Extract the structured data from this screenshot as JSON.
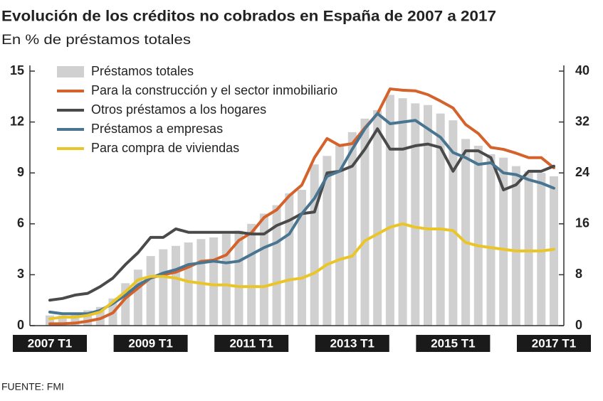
{
  "chart_data": {
    "type": "combo",
    "title": "Evolución de los créditos no cobrados en España de 2007 a 2017",
    "subtitle": "En % de préstamos totales",
    "source": "FUENTE: FMI",
    "categories": [
      "2007 T1",
      null,
      null,
      null,
      null,
      null,
      null,
      null,
      "2009 T1",
      null,
      null,
      null,
      null,
      null,
      null,
      null,
      "2011 T1",
      null,
      null,
      null,
      null,
      null,
      null,
      null,
      "2013 T1",
      null,
      null,
      null,
      null,
      null,
      null,
      null,
      "2015 T1",
      null,
      null,
      null,
      null,
      null,
      null,
      null,
      "2017 T1"
    ],
    "ylim": [
      0,
      15
    ],
    "yticks": [
      0,
      3,
      6,
      9,
      12,
      15
    ],
    "y2lim": [
      0,
      40
    ],
    "y2ticks": [
      0,
      8,
      16,
      24,
      32,
      40
    ],
    "legend": "top-left",
    "series": [
      {
        "name": "Préstamos totales",
        "type": "bar",
        "color": "#d0d0d0",
        "values": [
          0.6,
          0.6,
          0.7,
          0.9,
          1.1,
          1.6,
          2.5,
          3.3,
          4.1,
          4.5,
          4.7,
          4.9,
          5.1,
          5.2,
          5.4,
          5.6,
          6.0,
          6.6,
          7.1,
          7.8,
          8.0,
          9.5,
          10.0,
          10.7,
          11.4,
          12.2,
          12.7,
          13.6,
          13.4,
          13.1,
          13.0,
          12.5,
          12.1,
          11.0,
          10.6,
          10.1,
          9.9,
          9.4,
          9.1,
          9.0,
          8.8
        ]
      },
      {
        "name": "Para la construcción y el sector inmobiliario",
        "type": "line",
        "axis": "y2",
        "color": "#d4622a",
        "values": [
          0.3,
          0.3,
          0.4,
          0.7,
          1.1,
          2.0,
          4.3,
          5.9,
          7.5,
          8.0,
          8.4,
          9.2,
          10.1,
          10.3,
          11.1,
          13.4,
          14.6,
          17.0,
          18.2,
          20.4,
          22.1,
          26.4,
          29.4,
          28.3,
          28.6,
          31.1,
          33.3,
          37.2,
          37.0,
          36.9,
          36.3,
          35.3,
          34.2,
          31.6,
          30.2,
          28.0,
          27.7,
          27.1,
          26.4,
          26.4,
          24.8
        ]
      },
      {
        "name": "Otros préstamos a los hogares",
        "type": "line",
        "color": "#4a4a4a",
        "values": [
          1.5,
          1.6,
          1.8,
          1.9,
          2.3,
          2.8,
          3.6,
          4.3,
          5.2,
          5.2,
          5.7,
          5.5,
          5.5,
          5.5,
          5.5,
          5.5,
          5.4,
          5.4,
          5.9,
          6.2,
          6.6,
          6.7,
          9.0,
          9.1,
          9.4,
          10.4,
          11.6,
          10.4,
          10.4,
          10.6,
          10.7,
          10.5,
          9.1,
          10.3,
          10.3,
          9.9,
          8.0,
          8.3,
          9.1,
          9.1,
          9.4
        ]
      },
      {
        "name": "Préstamos a empresas",
        "type": "line",
        "color": "#4a7591",
        "values": [
          0.8,
          0.7,
          0.7,
          0.7,
          0.9,
          1.3,
          1.8,
          2.4,
          2.8,
          3.1,
          3.3,
          3.6,
          3.7,
          3.8,
          3.7,
          3.8,
          4.2,
          4.6,
          4.9,
          5.4,
          6.6,
          7.5,
          8.8,
          9.1,
          10.4,
          11.6,
          12.5,
          11.9,
          12.0,
          12.1,
          11.6,
          11.1,
          10.2,
          9.9,
          9.5,
          9.6,
          9.0,
          8.9,
          8.6,
          8.4,
          8.1
        ]
      },
      {
        "name": "Para compra de viviendas",
        "type": "line",
        "color": "#eac52a",
        "values": [
          0.4,
          0.5,
          0.5,
          0.6,
          0.8,
          1.4,
          2.0,
          2.7,
          2.9,
          2.9,
          2.8,
          2.6,
          2.5,
          2.4,
          2.4,
          2.3,
          2.3,
          2.3,
          2.5,
          2.7,
          2.8,
          3.1,
          3.6,
          3.9,
          4.1,
          5.0,
          5.4,
          5.8,
          6.0,
          5.8,
          5.7,
          5.7,
          5.6,
          4.9,
          4.7,
          4.6,
          4.5,
          4.4,
          4.4,
          4.4,
          4.5
        ]
      }
    ]
  }
}
